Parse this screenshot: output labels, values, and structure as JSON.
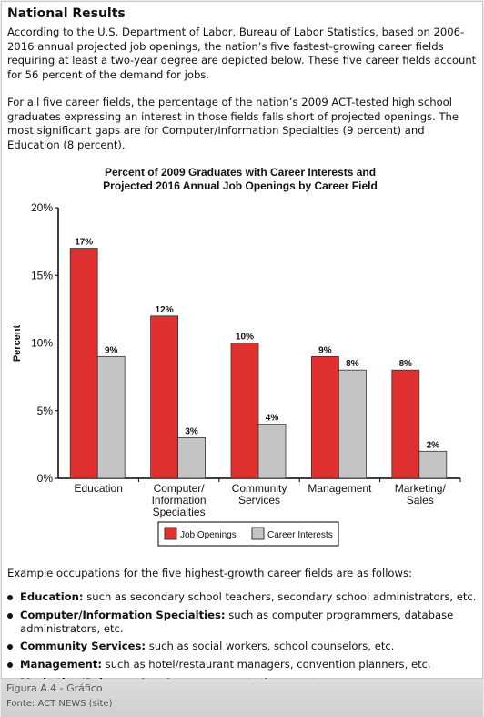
{
  "header": {
    "title": "National Results"
  },
  "paragraphs": [
    "According to the U.S. Department of Labor, Bureau of Labor Statistics, based on 2006-2016 annual projected job openings, the nation’s five fastest-growing career fields requiring at least a two-year degree are depicted below. These five career fields account for 56 percent of the demand for jobs.",
    "For all five career fields, the percentage of the nation’s 2009 ACT-tested high school graduates expressing an interest in those fields falls short of projected openings. The most significant gaps are for Computer/Information Specialties (9 percent) and Education (8 percent)."
  ],
  "chart_data": {
    "type": "bar",
    "title": "Percent of 2009 Graduates with Career Interests and",
    "subtitle": "Projected 2016 Annual Job Openings by Career Field",
    "y_label": "Percent",
    "categories": [
      "Education",
      "Computer/\nInformation\nSpecialties",
      "Community\nServices",
      "Management",
      "Marketing/\nSales"
    ],
    "series": [
      {
        "name": "Job Openings",
        "color": "#e03030",
        "values": [
          17,
          12,
          10,
          9,
          8
        ],
        "value_labels": [
          "17%",
          "12%",
          "10%",
          "9%",
          "8%"
        ]
      },
      {
        "name": "Career Interests",
        "color": "#c4c4c4",
        "values": [
          9,
          3,
          4,
          8,
          2
        ],
        "value_labels": [
          "9%",
          "3%",
          "4%",
          "8%",
          "2%"
        ]
      }
    ],
    "ylim": [
      0,
      20
    ],
    "yticks": [
      {
        "value": 0,
        "label": "0%"
      },
      {
        "value": 5,
        "label": "5%"
      },
      {
        "value": 10,
        "label": "10%"
      },
      {
        "value": 15,
        "label": "15%"
      },
      {
        "value": 20,
        "label": "20%"
      }
    ],
    "grid": false,
    "legend": "bottom"
  },
  "list": {
    "intro": "Example occupations for the five highest-growth career fields are as follows:",
    "items": [
      {
        "term": "Education:",
        "text": "such as secondary school teachers, secondary school administrators, etc."
      },
      {
        "term": "Computer/Information Specialties:",
        "text": "such as computer programmers, database administrators, etc."
      },
      {
        "term": "Community Services:",
        "text": "such as social workers, school counselors, etc."
      },
      {
        "term": "Management:",
        "text": "such as hotel/restaurant managers, convention planners, etc."
      },
      {
        "term": "Marketing/Sales:",
        "text": "such as insurance agents, buyers, etc."
      }
    ]
  },
  "caption": {
    "figure": "Figura A.4 - Gráfico",
    "source": "Fonte: ACT NEWS (site)"
  }
}
